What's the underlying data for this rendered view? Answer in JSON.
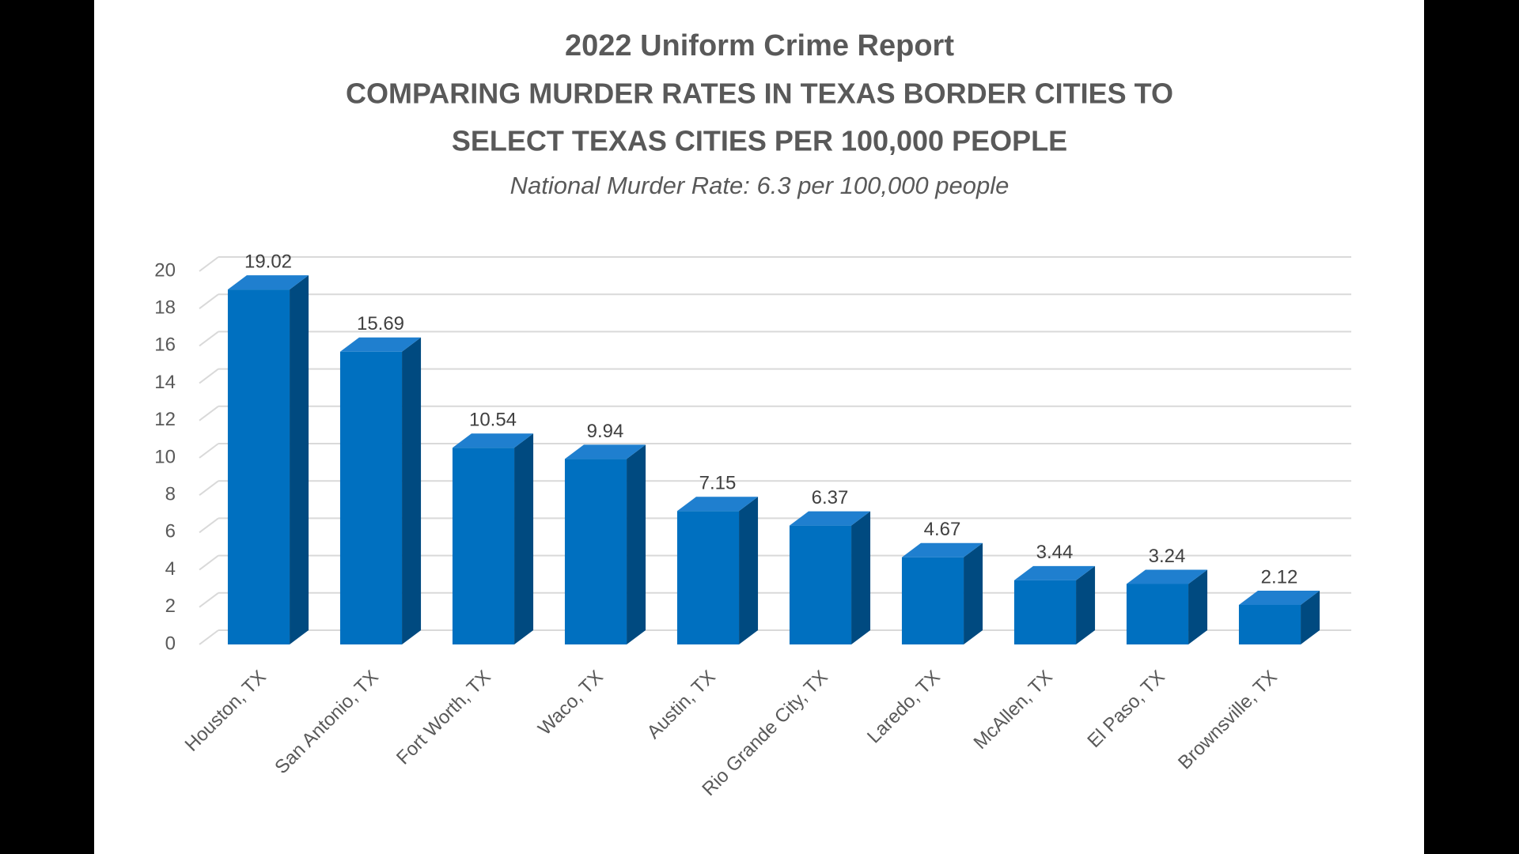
{
  "chart_data": {
    "type": "bar3d",
    "title": [
      "2022 Uniform Crime Report",
      "COMPARING MURDER RATES IN TEXAS BORDER CITIES TO",
      "SELECT TEXAS CITIES PER 100,000 PEOPLE"
    ],
    "subtitle": "National Murder Rate: 6.3 per 100,000 people",
    "categories": [
      "Houston, TX",
      "San Antonio, TX",
      "Fort Worth, TX",
      "Waco, TX",
      "Austin, TX",
      "Rio Grande City, TX",
      "Laredo, TX",
      "McAllen, TX",
      "El Paso, TX",
      "Brownsville, TX"
    ],
    "values": [
      19.02,
      15.69,
      10.54,
      9.94,
      7.15,
      6.37,
      4.67,
      3.44,
      3.24,
      2.12
    ],
    "color": "#0070c0",
    "ylim": [
      0,
      20
    ],
    "yticks": [
      0,
      2,
      4,
      6,
      8,
      10,
      12,
      14,
      16,
      18,
      20
    ],
    "grid": true
  }
}
